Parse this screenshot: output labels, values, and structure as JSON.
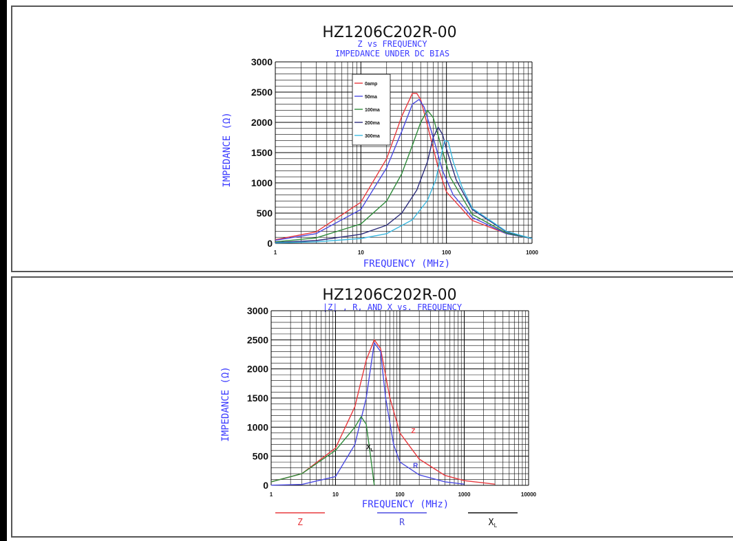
{
  "chart_data": [
    {
      "type": "line",
      "title": "HZ1206C202R-00",
      "subtitle_lines": [
        "Z vs FREQUENCY",
        "IMPEDANCE UNDER DC BIAS"
      ],
      "xlabel": "FREQUENCY (MHz)",
      "ylabel": "IMPEDANCE (Ω)",
      "xscale": "log",
      "xlim": [
        1,
        1000
      ],
      "ylim": [
        0,
        3000
      ],
      "xticks": [
        1,
        10,
        100,
        1000
      ],
      "xtick_labels": [
        "1",
        "10",
        "100",
        "1000"
      ],
      "yticks": [
        0,
        500,
        1000,
        1500,
        2000,
        2500,
        3000
      ],
      "ytick_labels": [
        "0",
        "500",
        "1000",
        "1500",
        "2000",
        "2500",
        "3000"
      ],
      "grid": true,
      "legend_position": "top-left",
      "series": [
        {
          "name": "0amp",
          "color": "#e8383d",
          "x": [
            1,
            3,
            10,
            20,
            30,
            40,
            45,
            50,
            60,
            80,
            100,
            200,
            500,
            1000
          ],
          "y": [
            60,
            190,
            680,
            1400,
            2100,
            2480,
            2480,
            2380,
            1950,
            1250,
            850,
            380,
            160,
            80
          ]
        },
        {
          "name": "50ma",
          "color": "#4a4ae0",
          "x": [
            1,
            3,
            10,
            20,
            30,
            40,
            48,
            55,
            70,
            90,
            120,
            200,
            500,
            1000
          ],
          "y": [
            50,
            160,
            560,
            1250,
            1850,
            2300,
            2380,
            2250,
            1750,
            1200,
            800,
            430,
            160,
            80
          ]
        },
        {
          "name": "100ma",
          "color": "#2e8b3a",
          "x": [
            1,
            3,
            10,
            20,
            30,
            40,
            50,
            60,
            70,
            85,
            110,
            200,
            500,
            1000
          ],
          "y": [
            25,
            90,
            320,
            700,
            1150,
            1620,
            2000,
            2200,
            2080,
            1650,
            1100,
            480,
            170,
            80
          ]
        },
        {
          "name": "200ma",
          "color": "#2b2b7a",
          "x": [
            1,
            3,
            10,
            20,
            30,
            45,
            60,
            70,
            80,
            90,
            100,
            130,
            200,
            500,
            1000
          ],
          "y": [
            15,
            45,
            150,
            300,
            500,
            880,
            1350,
            1750,
            1920,
            1800,
            1560,
            1050,
            560,
            190,
            80
          ]
        },
        {
          "name": "300ma",
          "color": "#3bb8e0",
          "x": [
            1,
            3,
            10,
            20,
            40,
            60,
            75,
            85,
            95,
            105,
            120,
            150,
            200,
            500,
            1000
          ],
          "y": [
            8,
            25,
            80,
            160,
            390,
            710,
            1050,
            1400,
            1700,
            1680,
            1350,
            950,
            580,
            200,
            80
          ]
        }
      ]
    },
    {
      "type": "line",
      "title": "HZ1206C202R-00",
      "subtitle_lines": [
        "|Z| , R, AND X vs. FREQUENCY"
      ],
      "xlabel": "FREQUENCY (MHz)",
      "ylabel": "IMPEDANCE (Ω)",
      "xscale": "log",
      "xlim": [
        1,
        10000
      ],
      "ylim": [
        0,
        3000
      ],
      "xticks": [
        1,
        10,
        100,
        1000,
        10000
      ],
      "xtick_labels": [
        "1",
        "10",
        "100",
        "1000",
        "10000"
      ],
      "yticks": [
        0,
        500,
        1000,
        1500,
        2000,
        2500,
        3000
      ],
      "ytick_labels": [
        "0",
        "500",
        "1000",
        "1500",
        "2000",
        "2500",
        "3000"
      ],
      "grid": true,
      "series": [
        {
          "name": "Z",
          "color": "#e8383d",
          "x": [
            1,
            3,
            10,
            20,
            30,
            40,
            50,
            70,
            100,
            200,
            500,
            1000,
            3000
          ],
          "y": [
            60,
            200,
            640,
            1350,
            2150,
            2500,
            2350,
            1500,
            900,
            450,
            170,
            80,
            20
          ]
        },
        {
          "name": "R",
          "color": "#4a4ae0",
          "x": [
            1,
            3,
            10,
            20,
            30,
            40,
            50,
            60,
            80,
            100,
            200,
            500,
            1000
          ],
          "y": [
            2,
            15,
            150,
            700,
            1500,
            2450,
            2300,
            1500,
            700,
            400,
            180,
            60,
            20
          ]
        },
        {
          "name": "XL",
          "color": "#2e8b3a",
          "x": [
            1,
            3,
            10,
            20,
            25,
            30,
            35,
            40
          ],
          "y": [
            60,
            200,
            600,
            1000,
            1180,
            1050,
            500,
            0
          ]
        }
      ],
      "annotations": [
        {
          "text": "Z",
          "x": 150,
          "y": 900,
          "color": "#e8383d"
        },
        {
          "text": "R",
          "x": 160,
          "y": 300,
          "color": "#4a4ae0"
        },
        {
          "text": "X",
          "sub": "L",
          "x": 30,
          "y": 620,
          "color": "#111111"
        }
      ],
      "legend": [
        {
          "label": "Z",
          "color": "#e8383d"
        },
        {
          "label": "R",
          "color": "#4a4ae0"
        },
        {
          "label": "X",
          "sub": "L",
          "color": "#111111"
        }
      ]
    }
  ]
}
